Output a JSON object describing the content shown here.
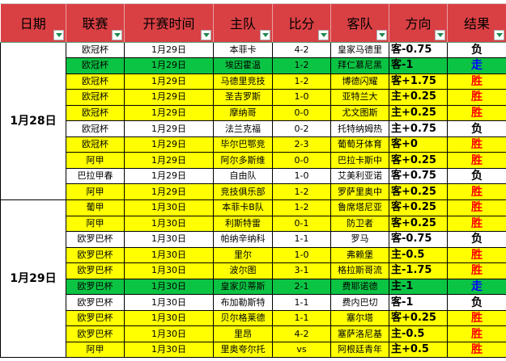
{
  "headers": [
    "日期",
    "联赛",
    "开赛时间",
    "主队",
    "比分",
    "客队",
    "方向",
    "结果"
  ],
  "dates": [
    "1月28日",
    "1月29日"
  ],
  "colors": {
    "header": "#d94044",
    "yellow": "#ffff00",
    "green": "#0cc444",
    "win": "#ff0000",
    "push": "#0000ff"
  },
  "rows": [
    {
      "league": "欧冠杯",
      "time": "1月29日",
      "home": "本菲卡",
      "score": "4-2",
      "away": "皇家马德里",
      "dir": "客-0.75",
      "result": "负",
      "bg": "white"
    },
    {
      "league": "欧冠杯",
      "time": "1月29日",
      "home": "埃因霍温",
      "score": "1-2",
      "away": "拜仁慕尼黑",
      "dir": "客-1",
      "result": "走",
      "bg": "green"
    },
    {
      "league": "欧冠杯",
      "time": "1月29日",
      "home": "马德里竞技",
      "score": "1-2",
      "away": "博德闪耀",
      "dir": "客+1.75",
      "result": "胜",
      "bg": "yellow"
    },
    {
      "league": "欧冠杯",
      "time": "1月29日",
      "home": "圣吉罗斯",
      "score": "1-0",
      "away": "亚特兰大",
      "dir": "主+0.25",
      "result": "胜",
      "bg": "yellow"
    },
    {
      "league": "欧冠杯",
      "time": "1月29日",
      "home": "摩纳哥",
      "score": "0-0",
      "away": "尤文图斯",
      "dir": "主+0.25",
      "result": "胜",
      "bg": "yellow"
    },
    {
      "league": "欧冠杯",
      "time": "1月29日",
      "home": "法兰克福",
      "score": "0-2",
      "away": "托特纳姆热",
      "dir": "主+0.75",
      "result": "负",
      "bg": "white"
    },
    {
      "league": "欧冠杯",
      "time": "1月29日",
      "home": "毕尔巴鄂竞",
      "score": "2-3",
      "away": "葡萄牙体育",
      "dir": "客+0",
      "result": "胜",
      "bg": "yellow"
    },
    {
      "league": "阿甲",
      "time": "1月29日",
      "home": "阿尔多斯维",
      "score": "0-0",
      "away": "巴拉卡斯中",
      "dir": "客+0.25",
      "result": "胜",
      "bg": "yellow"
    },
    {
      "league": "巴拉甲春",
      "time": "1月29日",
      "home": "自由队",
      "score": "1-0",
      "away": "艾美利亚诺",
      "dir": "客+0.75",
      "result": "负",
      "bg": "white"
    },
    {
      "league": "阿甲",
      "time": "1月29日",
      "home": "竞技俱乐部",
      "score": "1-2",
      "away": "罗萨里奥中",
      "dir": "客+0.25",
      "result": "胜",
      "bg": "yellow"
    },
    {
      "league": "葡甲",
      "time": "1月30日",
      "home": "本菲卡B队",
      "score": "1-2",
      "away": "鲁席塔尼亚",
      "dir": "客+0.25",
      "result": "胜",
      "bg": "yellow"
    },
    {
      "league": "阿甲",
      "time": "1月30日",
      "home": "利斯特雷",
      "score": "0-1",
      "away": "防卫者",
      "dir": "客+0.25",
      "result": "胜",
      "bg": "yellow"
    },
    {
      "league": "欧罗巴杯",
      "time": "1月30日",
      "home": "帕纳辛纳科",
      "score": "1-1",
      "away": "罗马",
      "dir": "客-0.75",
      "result": "负",
      "bg": "white"
    },
    {
      "league": "欧罗巴杯",
      "time": "1月30日",
      "home": "里尔",
      "score": "1-0",
      "away": "弗赖堡",
      "dir": "主-0.5",
      "result": "胜",
      "bg": "yellow"
    },
    {
      "league": "欧罗巴杯",
      "time": "1月30日",
      "home": "波尔图",
      "score": "3-1",
      "away": "格拉斯哥流",
      "dir": "主-1.75",
      "result": "胜",
      "bg": "yellow"
    },
    {
      "league": "欧罗巴杯",
      "time": "1月30日",
      "home": "皇家贝蒂斯",
      "score": "2-1",
      "away": "费耶诺德",
      "dir": "主-1",
      "result": "走",
      "bg": "green"
    },
    {
      "league": "欧罗巴杯",
      "time": "1月30日",
      "home": "布加勒斯特",
      "score": "1-1",
      "away": "费内巴切",
      "dir": "客-1",
      "result": "负",
      "bg": "white"
    },
    {
      "league": "欧罗巴杯",
      "time": "1月30日",
      "home": "贝尔格莱德",
      "score": "1-1",
      "away": "塞尔塔",
      "dir": "客+0.25",
      "result": "胜",
      "bg": "yellow"
    },
    {
      "league": "欧罗巴杯",
      "time": "1月30日",
      "home": "里昂",
      "score": "4-2",
      "away": "塞萨洛尼基",
      "dir": "主-0.5",
      "result": "胜",
      "bg": "yellow"
    },
    {
      "league": "阿甲",
      "time": "1月30日",
      "home": "里奥夸尔托",
      "score": "vs",
      "away": "阿根廷青年",
      "dir": "主+0.5",
      "result": "胜",
      "bg": "yellow"
    }
  ]
}
